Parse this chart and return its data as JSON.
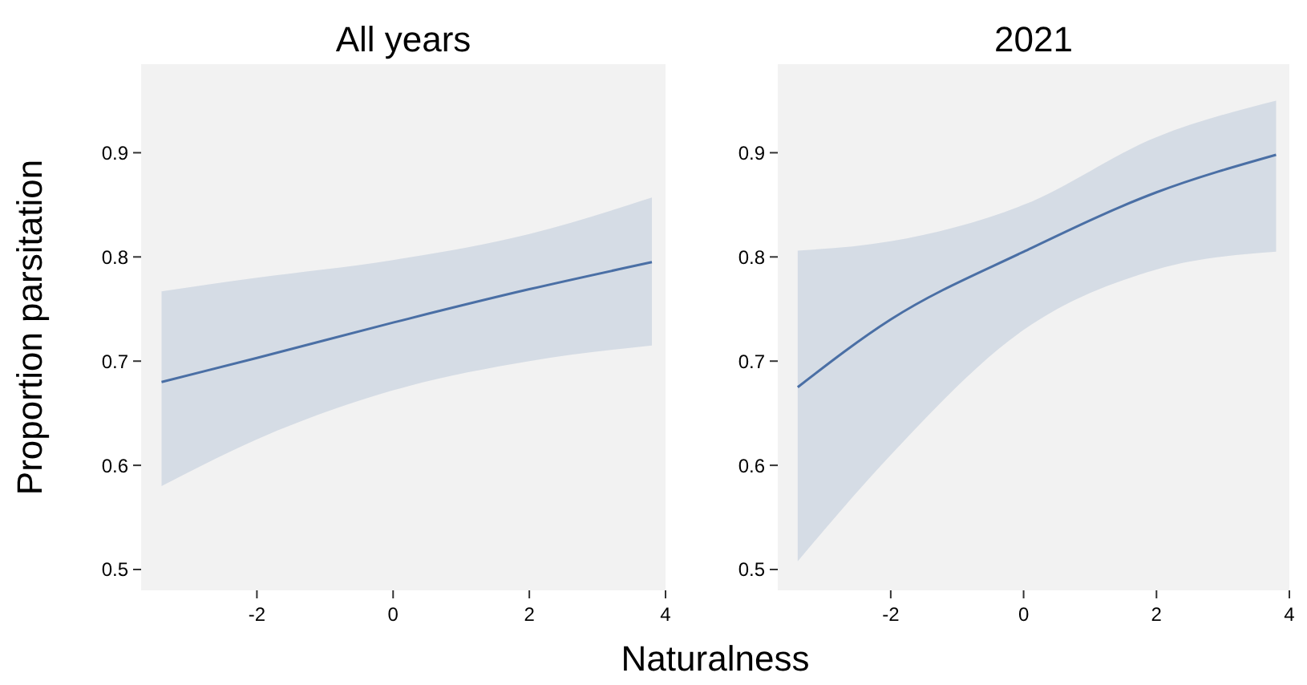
{
  "chart_data": [
    {
      "type": "line",
      "title": "All years",
      "ylabel": "Proportion parsitation",
      "xlabel": "Naturalness",
      "xlim": [
        -3.7,
        4
      ],
      "ylim": [
        0.48,
        0.985
      ],
      "xticks": [
        -2,
        0,
        2,
        4
      ],
      "yticks": [
        0.5,
        0.6,
        0.7,
        0.8,
        0.9
      ],
      "grid": false,
      "series": [
        {
          "color": "#4a6fa5",
          "x": [
            -3.4,
            -2,
            0,
            2,
            3.8
          ],
          "values": [
            0.68,
            0.703,
            0.737,
            0.769,
            0.795
          ],
          "lower": [
            0.58,
            0.625,
            0.672,
            0.7,
            0.715
          ],
          "upper": [
            0.767,
            0.78,
            0.797,
            0.822,
            0.857
          ]
        }
      ]
    },
    {
      "type": "line",
      "title": "2021",
      "xlim": [
        -3.7,
        4
      ],
      "ylim": [
        0.48,
        0.985
      ],
      "xticks": [
        -2,
        0,
        2,
        4
      ],
      "yticks": [
        0.5,
        0.6,
        0.7,
        0.8,
        0.9
      ],
      "grid": false,
      "series": [
        {
          "color": "#4a6fa5",
          "x": [
            -3.4,
            -2,
            0,
            2,
            3.8
          ],
          "values": [
            0.675,
            0.74,
            0.805,
            0.862,
            0.898
          ],
          "lower": [
            0.508,
            0.61,
            0.73,
            0.788,
            0.805
          ],
          "upper": [
            0.806,
            0.815,
            0.85,
            0.915,
            0.95
          ]
        }
      ]
    }
  ]
}
